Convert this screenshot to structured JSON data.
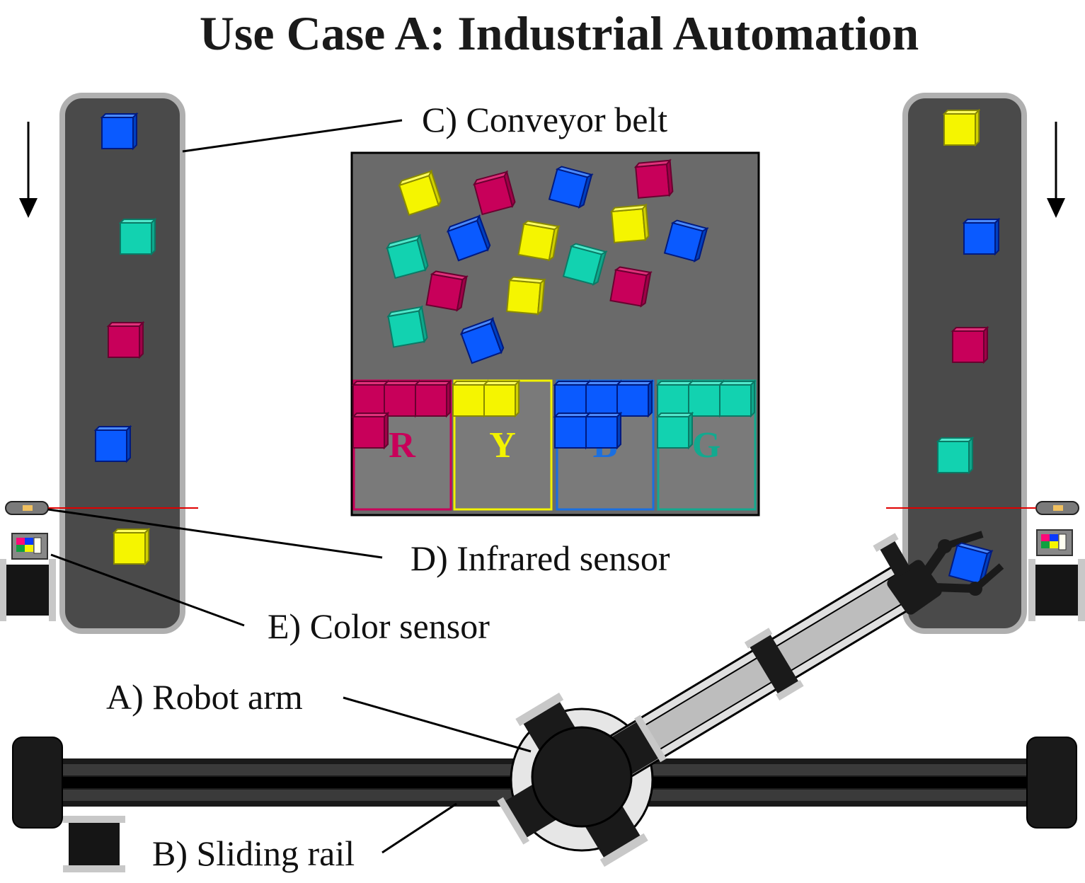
{
  "title": "Use Case A: Industrial Automation",
  "labels": {
    "robot_arm": "A) Robot arm",
    "sliding_rail": "B) Sliding rail",
    "conveyor_belt": "C) Conveyor belt",
    "infrared_sensor": "D) Infrared sensor",
    "color_sensor": "E) Color sensor"
  },
  "bins": [
    {
      "letter": "R",
      "color": "#c8005a"
    },
    {
      "letter": "Y",
      "color": "#f2f200"
    },
    {
      "letter": "B",
      "color": "#1a6fe0"
    },
    {
      "letter": "G",
      "color": "#13a98f"
    }
  ],
  "colors": {
    "magenta": "#c8005a",
    "yellow": "#f5f500",
    "blue": "#0a5aff",
    "teal": "#12d2b0",
    "belt": "#4a4a4a",
    "belt_border": "#b0b0b0",
    "table": "#6a6a6a",
    "laser": "#e00000"
  }
}
